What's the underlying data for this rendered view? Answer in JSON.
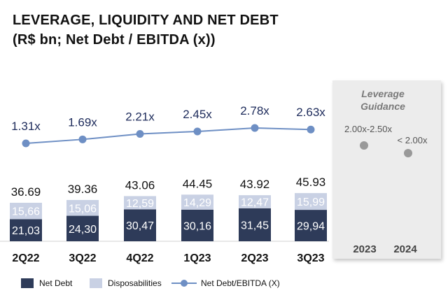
{
  "title_line1": "LEVERAGE, LIQUIDITY AND NET DEBT",
  "title_line2": "(R$ bn; Net Debt / EBITDA (x))",
  "colors": {
    "net_debt": "#2e3b59",
    "disposabilities": "#c9d1e4",
    "line": "#6e8fc4",
    "line_label": "#1c2a5a",
    "guidance_dot": "#999999",
    "guidance_title": "#7a7a7a"
  },
  "chart_data": {
    "type": "bar",
    "stacked": true,
    "categories": [
      "2Q22",
      "3Q22",
      "4Q22",
      "1Q23",
      "2Q23",
      "3Q23"
    ],
    "series": [
      {
        "name": "Net Debt",
        "values": [
          21.03,
          24.3,
          30.47,
          30.16,
          31.45,
          29.94
        ],
        "labels": [
          "21,03",
          "24,30",
          "30,47",
          "30,16",
          "31,45",
          "29,94"
        ]
      },
      {
        "name": "Disposabilities",
        "values": [
          15.66,
          15.06,
          12.59,
          14.29,
          12.47,
          15.99
        ],
        "labels": [
          "15,66",
          "15,06",
          "12,59",
          "14,29",
          "12,47",
          "15,99"
        ]
      }
    ],
    "totals": [
      "36.69",
      "39.36",
      "43.06",
      "44.45",
      "43.92",
      "45.93"
    ],
    "line_series": {
      "name": "Net Debt/EBITDA (X)",
      "values": [
        1.31,
        1.69,
        2.21,
        2.45,
        2.78,
        2.63
      ],
      "labels": [
        "1.31x",
        "1.69x",
        "2.21x",
        "2.45x",
        "2.78x",
        "2.63x"
      ]
    },
    "legend": [
      "Net Debt",
      "Disposabilities",
      "Net Debt/EBITDA (X)"
    ],
    "legend_position": "bottom"
  },
  "guidance": {
    "title_line1": "Leverage",
    "title_line2": "Guidance",
    "years": [
      "2023",
      "2024"
    ],
    "labels": [
      "2.00x-2.50x",
      "< 2.00x"
    ]
  }
}
